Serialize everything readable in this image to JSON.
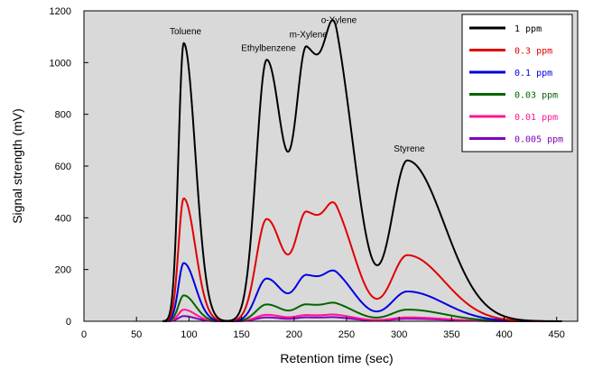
{
  "chart_data": {
    "type": "line",
    "title": "",
    "xlabel": "Retention time (sec)",
    "ylabel": "Signal strength (mV)",
    "xlim": [
      0,
      470
    ],
    "ylim": [
      0,
      1200
    ],
    "xticks": [
      0,
      50,
      100,
      150,
      200,
      250,
      300,
      350,
      400,
      450
    ],
    "yticks": [
      0,
      200,
      400,
      600,
      800,
      1000,
      1200
    ],
    "grid": false,
    "background": "#d9d9d9",
    "legend_position": "top-right",
    "peaks": [
      {
        "label": "Toluene",
        "rt": 95,
        "sigma_left": 5,
        "sigma_right": 11
      },
      {
        "label": "Ethylbenzene",
        "rt": 174,
        "sigma_left": 10,
        "sigma_right": 16
      },
      {
        "label": "m-Xylene",
        "rt": 212,
        "sigma_left": 10,
        "sigma_right": 17
      },
      {
        "label": "o-Xylene",
        "rt": 241,
        "sigma_left": 11,
        "sigma_right": 19
      },
      {
        "label": "Styrene",
        "rt": 308,
        "sigma_left": 15,
        "sigma_right": 35
      }
    ],
    "series": [
      {
        "name": "1 ppm",
        "color": "#000000",
        "peak_heights": [
          1075,
          1010,
          975,
          890,
          620
        ]
      },
      {
        "name": "0.3 ppm",
        "color": "#e00000",
        "peak_heights": [
          475,
          395,
          390,
          350,
          255
        ]
      },
      {
        "name": "0.1 ppm",
        "color": "#0000e0",
        "peak_heights": [
          225,
          165,
          165,
          150,
          115
        ]
      },
      {
        "name": "0.03 ppm",
        "color": "#006400",
        "peak_heights": [
          100,
          65,
          60,
          55,
          45
        ]
      },
      {
        "name": "0.01 ppm",
        "color": "#ff1493",
        "peak_heights": [
          45,
          25,
          22,
          20,
          15
        ]
      },
      {
        "name": "0.005 ppm",
        "color": "#8000c0",
        "peak_heights": [
          20,
          15,
          14,
          12,
          10
        ]
      }
    ]
  }
}
